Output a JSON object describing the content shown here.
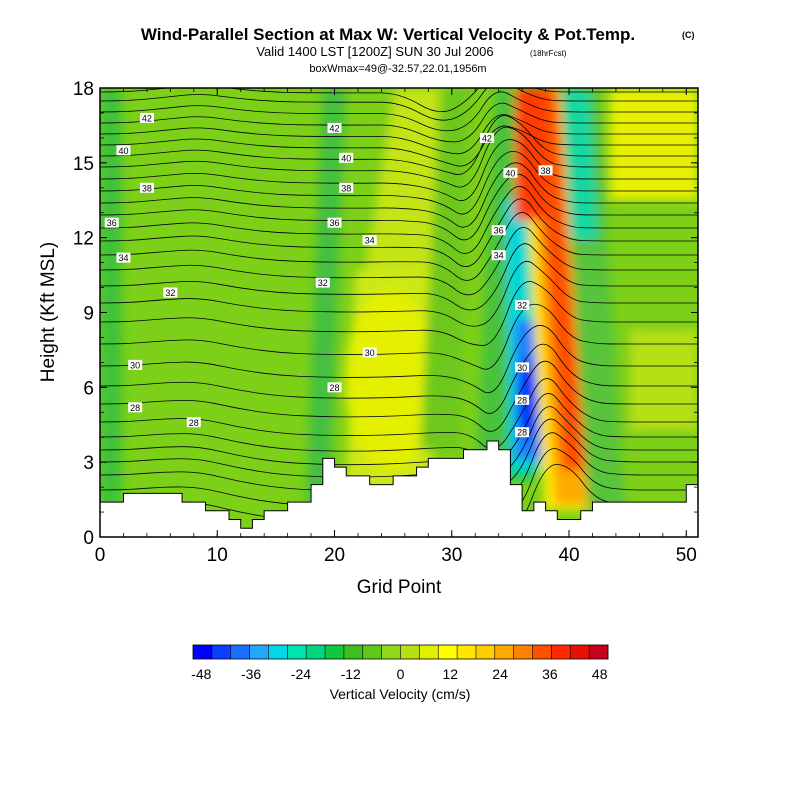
{
  "chart_data": {
    "type": "contour",
    "title": "Wind-Parallel Section at Max W: Vertical Velocity & Pot.Temp.",
    "title_mark": "(C)",
    "subtitle": "Valid 1400 LST [1200Z] SUN 30 Jul 2006",
    "subtitle_note": "(18hrFcst)",
    "subtitle2": "boxWmax=49@-32.57,22.01,1956m",
    "xlabel": "Grid Point",
    "ylabel": "Height (Kft MSL)",
    "xlim": [
      0,
      51
    ],
    "ylim": [
      0,
      18
    ],
    "xticks": [
      "0",
      "10",
      "20",
      "30",
      "40",
      "50"
    ],
    "yticks": [
      "0",
      "3",
      "6",
      "9",
      "12",
      "15",
      "18"
    ],
    "colorbar": {
      "label": "Vertical Velocity (cm/s)",
      "range": [
        -50,
        50
      ],
      "ticks": [
        "-48",
        "-36",
        "-24",
        "-12",
        "0",
        "12",
        "24",
        "36",
        "48"
      ],
      "colors": [
        "#0000ff",
        "#0d3dff",
        "#1a6fff",
        "#25a6ff",
        "#00d8e8",
        "#00e4b0",
        "#00d880",
        "#10c840",
        "#3cc020",
        "#60c818",
        "#90d818",
        "#b8e010",
        "#e0f000",
        "#ffff00",
        "#ffe600",
        "#ffcc00",
        "#ffa800",
        "#ff8000",
        "#ff5000",
        "#ff2800",
        "#e81000",
        "#c80020"
      ]
    },
    "terrain_kft": [
      [
        0,
        1.4
      ],
      [
        2,
        1.4
      ],
      [
        2,
        1.75
      ],
      [
        7,
        1.75
      ],
      [
        7,
        1.4
      ],
      [
        9,
        1.4
      ],
      [
        9,
        1.05
      ],
      [
        11,
        1.05
      ],
      [
        11,
        0.7
      ],
      [
        12,
        0.7
      ],
      [
        12,
        0.35
      ],
      [
        13,
        0.35
      ],
      [
        13,
        0.7
      ],
      [
        14,
        0.7
      ],
      [
        14,
        1.05
      ],
      [
        16,
        1.05
      ],
      [
        16,
        1.4
      ],
      [
        18,
        1.4
      ],
      [
        18,
        2.1
      ],
      [
        19,
        2.1
      ],
      [
        19,
        3.15
      ],
      [
        20,
        3.15
      ],
      [
        20,
        2.8
      ],
      [
        21,
        2.8
      ],
      [
        21,
        2.45
      ],
      [
        23,
        2.45
      ],
      [
        23,
        2.1
      ],
      [
        25,
        2.1
      ],
      [
        25,
        2.45
      ],
      [
        27,
        2.45
      ],
      [
        27,
        2.8
      ],
      [
        28,
        2.8
      ],
      [
        28,
        3.15
      ],
      [
        31,
        3.15
      ],
      [
        31,
        3.5
      ],
      [
        33,
        3.5
      ],
      [
        33,
        3.85
      ],
      [
        34,
        3.85
      ],
      [
        34,
        3.5
      ],
      [
        35,
        3.5
      ],
      [
        35,
        2.1
      ],
      [
        36,
        2.1
      ],
      [
        36,
        1.05
      ],
      [
        37,
        1.05
      ],
      [
        37,
        1.4
      ],
      [
        38,
        1.4
      ],
      [
        38,
        1.05
      ],
      [
        39,
        1.05
      ],
      [
        39,
        0.7
      ],
      [
        41,
        0.7
      ],
      [
        41,
        1.05
      ],
      [
        42,
        1.05
      ],
      [
        42,
        1.4
      ],
      [
        50,
        1.4
      ],
      [
        50,
        2.1
      ],
      [
        51,
        2.1
      ]
    ],
    "theta_labels": [
      {
        "text": "42",
        "x": 4,
        "y": 16.8
      },
      {
        "text": "40",
        "x": 2,
        "y": 15.5
      },
      {
        "text": "38",
        "x": 4,
        "y": 14.0
      },
      {
        "text": "36",
        "x": 1,
        "y": 12.6
      },
      {
        "text": "34",
        "x": 2,
        "y": 11.2
      },
      {
        "text": "32",
        "x": 6,
        "y": 9.8
      },
      {
        "text": "30",
        "x": 3,
        "y": 6.9
      },
      {
        "text": "28",
        "x": 3,
        "y": 5.2
      },
      {
        "text": "28",
        "x": 8,
        "y": 4.6
      },
      {
        "text": "42",
        "x": 20,
        "y": 16.4
      },
      {
        "text": "40",
        "x": 21,
        "y": 15.2
      },
      {
        "text": "38",
        "x": 21,
        "y": 14.0
      },
      {
        "text": "36",
        "x": 20,
        "y": 12.6
      },
      {
        "text": "34",
        "x": 23,
        "y": 11.9
      },
      {
        "text": "32",
        "x": 19,
        "y": 10.2
      },
      {
        "text": "30",
        "x": 23,
        "y": 7.4
      },
      {
        "text": "28",
        "x": 20,
        "y": 6.0
      },
      {
        "text": "42",
        "x": 33,
        "y": 16.0
      },
      {
        "text": "40",
        "x": 35,
        "y": 14.6
      },
      {
        "text": "38",
        "x": 38,
        "y": 14.7
      },
      {
        "text": "36",
        "x": 34,
        "y": 12.3
      },
      {
        "text": "34",
        "x": 34,
        "y": 11.3
      },
      {
        "text": "32",
        "x": 36,
        "y": 9.3
      },
      {
        "text": "30",
        "x": 36,
        "y": 6.8
      },
      {
        "text": "28",
        "x": 36,
        "y": 5.5
      },
      {
        "text": "28",
        "x": 36,
        "y": 4.2
      }
    ]
  }
}
